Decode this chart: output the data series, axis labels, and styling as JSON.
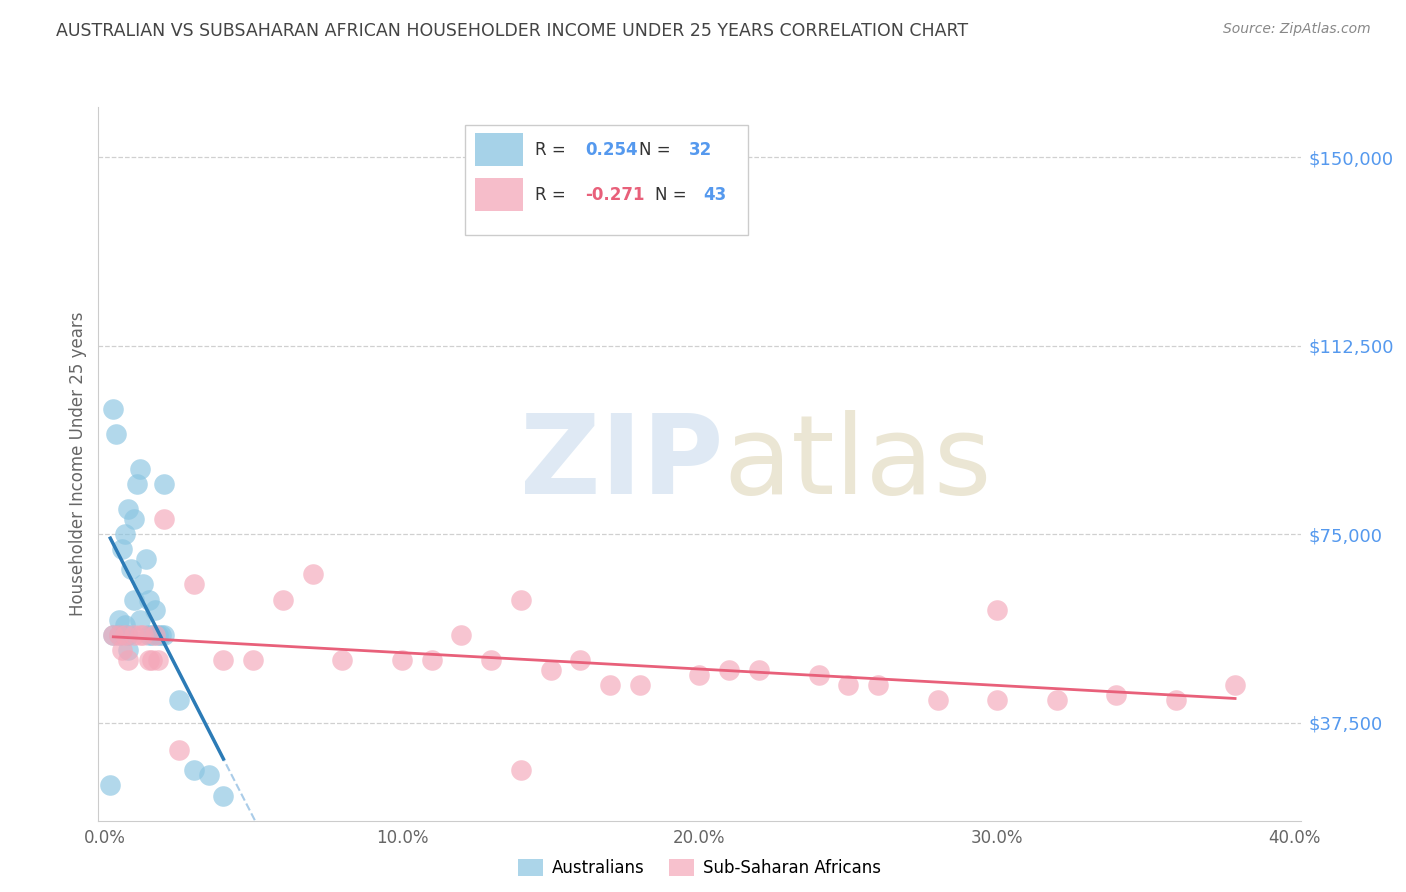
{
  "title": "AUSTRALIAN VS SUBSAHARAN AFRICAN HOUSEHOLDER INCOME UNDER 25 YEARS CORRELATION CHART",
  "source": "Source: ZipAtlas.com",
  "ylabel": "Householder Income Under 25 years",
  "ytick_labels": [
    "$37,500",
    "$75,000",
    "$112,500",
    "$150,000"
  ],
  "ytick_vals": [
    37500,
    75000,
    112500,
    150000
  ],
  "ymin": 18000,
  "ymax": 160000,
  "xmin": -0.002,
  "xmax": 0.402,
  "xtick_vals": [
    0.0,
    0.1,
    0.2,
    0.3,
    0.4
  ],
  "xtick_labels": [
    "0.0%",
    "10.0%",
    "20.0%",
    "30.0%",
    "40.0%"
  ],
  "australian_color": "#89c4e1",
  "subsaharan_color": "#f4a7b9",
  "trend_aus_color": "#2c7bb6",
  "trend_sub_color": "#e8607a",
  "trend_dashed_color": "#aacce8",
  "background_color": "#ffffff",
  "grid_color": "#d0d0d0",
  "legend_box_color": "#ffffff",
  "legend_border_color": "#cccccc",
  "title_color": "#444444",
  "source_color": "#888888",
  "ytick_color": "#5599ee",
  "xtick_color": "#666666",
  "ylabel_color": "#666666",
  "aus_x": [
    0.002,
    0.003,
    0.003,
    0.004,
    0.005,
    0.005,
    0.006,
    0.007,
    0.007,
    0.008,
    0.008,
    0.008,
    0.009,
    0.01,
    0.01,
    0.011,
    0.012,
    0.012,
    0.013,
    0.014,
    0.015,
    0.015,
    0.016,
    0.017,
    0.018,
    0.019,
    0.02,
    0.02,
    0.025,
    0.03,
    0.035,
    0.04
  ],
  "aus_y": [
    25000,
    55000,
    100000,
    95000,
    55000,
    58000,
    72000,
    75000,
    57000,
    55000,
    52000,
    80000,
    68000,
    62000,
    78000,
    85000,
    58000,
    88000,
    65000,
    70000,
    55000,
    62000,
    55000,
    60000,
    55000,
    55000,
    55000,
    85000,
    42000,
    28000,
    27000,
    23000
  ],
  "sub_x": [
    0.003,
    0.005,
    0.006,
    0.007,
    0.008,
    0.01,
    0.012,
    0.013,
    0.015,
    0.016,
    0.017,
    0.018,
    0.02,
    0.025,
    0.03,
    0.04,
    0.05,
    0.06,
    0.07,
    0.08,
    0.1,
    0.11,
    0.12,
    0.13,
    0.14,
    0.15,
    0.16,
    0.17,
    0.18,
    0.2,
    0.21,
    0.22,
    0.24,
    0.25,
    0.26,
    0.28,
    0.3,
    0.32,
    0.34,
    0.36,
    0.38,
    0.14,
    0.3
  ],
  "sub_y": [
    55000,
    55000,
    52000,
    55000,
    50000,
    55000,
    55000,
    55000,
    50000,
    50000,
    55000,
    50000,
    78000,
    32000,
    65000,
    50000,
    50000,
    62000,
    67000,
    50000,
    50000,
    50000,
    55000,
    50000,
    62000,
    48000,
    50000,
    45000,
    45000,
    47000,
    48000,
    48000,
    47000,
    45000,
    45000,
    42000,
    42000,
    42000,
    43000,
    42000,
    45000,
    28000,
    60000
  ]
}
